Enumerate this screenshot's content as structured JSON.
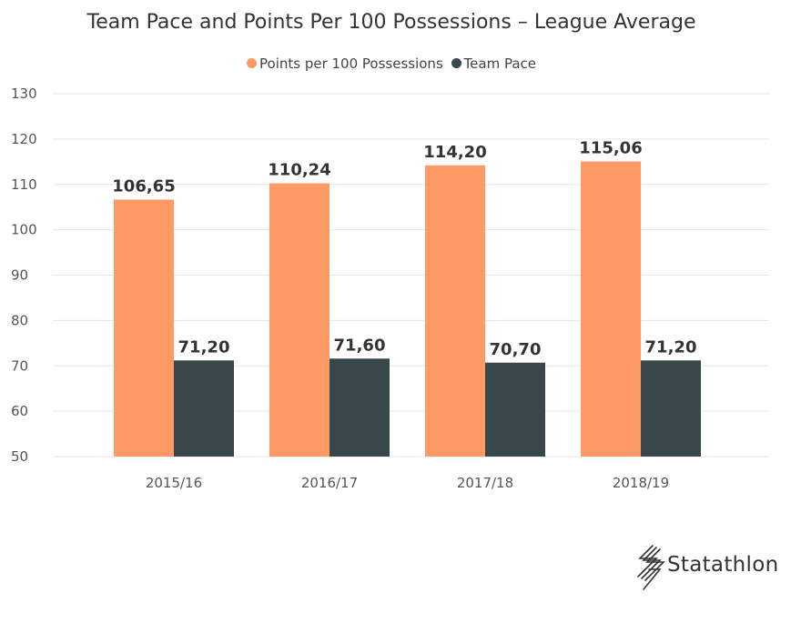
{
  "chart_data": {
    "type": "bar",
    "title": "Team Pace and Points Per 100 Possessions – League Average",
    "categories": [
      "2015/16",
      "2016/17",
      "2017/18",
      "2018/19"
    ],
    "series": [
      {
        "name": "Points per 100 Possessions",
        "color": "#FF9966",
        "values": [
          106.65,
          110.24,
          114.2,
          115.06
        ],
        "labels": [
          "106,65",
          "110,24",
          "114,20",
          "115,06"
        ]
      },
      {
        "name": "Team Pace",
        "color": "#37474A",
        "values": [
          71.2,
          71.6,
          70.7,
          71.2
        ],
        "labels": [
          "71,20",
          "71,60",
          "70,70",
          "71,20"
        ]
      }
    ],
    "yticks": [
      50,
      60,
      70,
      80,
      90,
      100,
      110,
      120,
      130
    ],
    "ylim": [
      50,
      130
    ],
    "xlabel": "",
    "ylabel": "",
    "grid": true,
    "legend_position": "top-center"
  },
  "branding": {
    "logo_text": "Statathlon"
  }
}
